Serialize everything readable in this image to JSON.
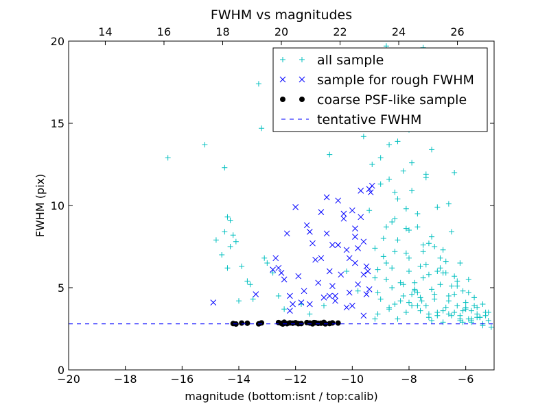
{
  "chart_data": {
    "type": "scatter",
    "title": "FWHM vs magnitudes",
    "xlabel": "magnitude (bottom:isnt / top:calib)",
    "ylabel": "FWHM (pix)",
    "xlim": [
      -20,
      -5
    ],
    "ylim": [
      0,
      20
    ],
    "x_ticks": [
      -20,
      -18,
      -16,
      -14,
      -12,
      -10,
      -8,
      -6
    ],
    "y_ticks": [
      0,
      5,
      10,
      15,
      20
    ],
    "top_axis": {
      "xlim": [
        12.75,
        27.25
      ],
      "ticks": [
        14,
        16,
        18,
        20,
        22,
        24,
        26
      ]
    },
    "legend_position": "top-right",
    "grid": false,
    "series": [
      {
        "name": "all sample",
        "marker": "+",
        "color": "#00bfbf",
        "x": [
          -16.5,
          -15.2,
          -14.5,
          -14.4,
          -14.3,
          -14.2,
          -14.1,
          -14.5,
          -14.3,
          -14.6,
          -14.8,
          -14.0,
          -13.9,
          -13.7,
          -13.6,
          -13.5,
          -13.3,
          -13.1,
          -13.0,
          -12.8,
          -14.4,
          -13.2,
          -12.6,
          -12.4,
          -11.8,
          -11.5,
          -11.0,
          -10.8,
          -10.5,
          -10.2,
          -9.8,
          -9.6,
          -9.4,
          -9.3,
          -9.2,
          -9.1,
          -9.0,
          -8.9,
          -8.8,
          -8.7,
          -8.6,
          -8.5,
          -8.4,
          -8.3,
          -8.2,
          -8.1,
          -8.0,
          -7.9,
          -7.8,
          -7.7,
          -7.6,
          -7.5,
          -7.4,
          -7.3,
          -7.2,
          -7.1,
          -7.0,
          -6.9,
          -6.8,
          -6.7,
          -6.6,
          -6.5,
          -6.4,
          -6.3,
          -6.2,
          -6.1,
          -6.0,
          -5.9,
          -5.8,
          -5.7,
          -5.6,
          -5.5,
          -5.4,
          -5.3,
          -5.2,
          -5.1,
          -9.2,
          -9.0,
          -8.8,
          -8.6,
          -8.4,
          -8.2,
          -8.0,
          -7.8,
          -7.6,
          -7.4,
          -7.2,
          -7.0,
          -6.8,
          -6.6,
          -6.4,
          -6.2,
          -6.0,
          -5.8,
          -5.6,
          -5.4,
          -5.2,
          -9.1,
          -8.9,
          -8.7,
          -8.5,
          -8.3,
          -8.1,
          -7.9,
          -7.7,
          -7.5,
          -7.3,
          -7.1,
          -6.9,
          -6.7,
          -6.5,
          -6.3,
          -6.1,
          -5.9,
          -5.7,
          -5.5,
          -5.3,
          -8.8,
          -8.4,
          -8.0,
          -7.6,
          -7.2,
          -6.8,
          -6.4,
          -6.0,
          -5.6,
          -8.6,
          -8.2,
          -7.8,
          -7.4,
          -7.0,
          -6.6,
          -6.2,
          -5.8,
          -9.0,
          -8.5,
          -8.0,
          -7.5,
          -7.0,
          -6.5,
          -8.7,
          -8.1,
          -7.7,
          -7.3,
          -6.9,
          -6.3,
          -5.9,
          -8.3,
          -7.9,
          -7.1,
          -6.7,
          -8.9,
          -8.0,
          -7.4,
          -6.6,
          -9.3,
          -8.6,
          -7.8,
          -7.2,
          -8.2,
          -7.6,
          -8.8,
          -8.4,
          -7.5,
          -7.0,
          -6.4,
          -9.1,
          -8.5,
          -7.9,
          -7.3,
          -6.8,
          -6.2,
          -5.8,
          -5.4,
          -7.55,
          -9.2,
          -8.7,
          -8.1,
          -7.7,
          -6.1
        ],
        "y": [
          12.9,
          13.7,
          12.3,
          9.3,
          9.1,
          8.2,
          7.8,
          8.4,
          7.5,
          7.0,
          7.9,
          4.2,
          6.3,
          5.4,
          5.2,
          4.3,
          17.4,
          6.8,
          6.5,
          5.9,
          6.2,
          14.7,
          4.5,
          3.7,
          4.0,
          3.4,
          3.9,
          13.1,
          15.8,
          6.0,
          4.8,
          14.2,
          9.7,
          12.5,
          7.4,
          6.1,
          11.3,
          8.0,
          6.5,
          13.7,
          9.0,
          7.2,
          10.4,
          5.3,
          12.1,
          8.6,
          6.8,
          10.9,
          4.9,
          9.5,
          6.3,
          7.6,
          11.7,
          5.8,
          8.1,
          4.6,
          9.9,
          5.2,
          7.3,
          6.6,
          4.5,
          8.4,
          5.7,
          3.9,
          6.5,
          4.8,
          4.1,
          5.5,
          3.6,
          4.4,
          3.8,
          3.2,
          4.0,
          3.3,
          3.0,
          2.6,
          5.6,
          4.3,
          8.7,
          5.0,
          7.9,
          4.5,
          6.0,
          5.3,
          3.6,
          6.4,
          4.9,
          3.5,
          5.9,
          3.4,
          4.6,
          3.1,
          3.7,
          2.9,
          3.4,
          2.8,
          3.5,
          4.7,
          6.9,
          3.8,
          9.2,
          4.2,
          7.1,
          3.9,
          4.7,
          5.6,
          3.4,
          4.3,
          6.2,
          3.8,
          3.3,
          5.1,
          3.6,
          3.1,
          3.9,
          3.2,
          3.5,
          5.5,
          3.1,
          4.1,
          4.4,
          3.0,
          2.9,
          3.5,
          3.8,
          3.2,
          6.2,
          5.2,
          4.8,
          3.9,
          3.3,
          4.2,
          3.0,
          3.1,
          12.9,
          10.8,
          8.5,
          7.2,
          6.0,
          5.1,
          11.6,
          9.8,
          8.7,
          7.7,
          6.8,
          5.4,
          4.7,
          15.2,
          12.6,
          7.5,
          5.9,
          16.9,
          14.6,
          11.9,
          10.1,
          18.1,
          15.7,
          14.9,
          13.4,
          16.4,
          15.5,
          19.7,
          13.9,
          19.6,
          17.7,
          12.0,
          3.4,
          4.0,
          4.6,
          3.2,
          3.6,
          3.3,
          3.0,
          2.7,
          4.2,
          3.1,
          3.7,
          3.5,
          3.9,
          2.9
        ]
      },
      {
        "name": "sample for rough FWHM",
        "marker": "x",
        "color": "#0000ff",
        "x": [
          -14.9,
          -13.4,
          -12.7,
          -12.6,
          -12.5,
          -12.4,
          -12.3,
          -12.2,
          -12.0,
          -11.8,
          -11.6,
          -11.5,
          -11.3,
          -11.2,
          -11.1,
          -11.0,
          -10.9,
          -10.8,
          -10.7,
          -10.6,
          -10.5,
          -10.4,
          -10.3,
          -10.2,
          -10.1,
          -10.0,
          -9.9,
          -9.8,
          -9.7,
          -9.6,
          -9.5,
          -9.4,
          -9.3,
          -11.7,
          -11.4,
          -10.9,
          -10.5,
          -10.1,
          -9.9,
          -9.6,
          -9.4,
          -12.1,
          -10.7,
          -10.3,
          -9.8,
          -9.5,
          -9.35,
          -10.0,
          -9.7,
          -11.9,
          -11.1,
          -10.6,
          -9.9,
          -9.45,
          -12.8,
          -12.2,
          -11.5,
          -10.8,
          -10.2,
          -9.6
        ],
        "y": [
          4.1,
          4.6,
          6.8,
          6.2,
          5.9,
          5.5,
          8.3,
          4.5,
          9.9,
          4.1,
          8.8,
          8.4,
          6.7,
          5.3,
          9.6,
          4.4,
          8.3,
          6.0,
          7.6,
          4.5,
          10.3,
          5.8,
          9.2,
          7.3,
          4.7,
          9.7,
          6.5,
          5.2,
          10.9,
          7.8,
          6.3,
          4.9,
          11.2,
          4.8,
          7.7,
          10.5,
          7.6,
          6.8,
          8.1,
          5.8,
          11.0,
          4.0,
          5.1,
          9.5,
          7.4,
          4.6,
          10.8,
          3.9,
          9.3,
          5.7,
          6.8,
          4.2,
          8.6,
          6.0,
          6.1,
          3.6,
          4.0,
          4.5,
          3.8,
          3.3
        ]
      },
      {
        "name": "coarse PSF-like sample",
        "marker": "o",
        "color": "#000000",
        "x": [
          -14.2,
          -14.1,
          -13.9,
          -13.7,
          -13.3,
          -13.2,
          -12.6,
          -12.5,
          -12.4,
          -12.3,
          -12.2,
          -12.1,
          -12.0,
          -11.8,
          -11.6,
          -11.5,
          -11.4,
          -11.3,
          -11.2,
          -11.1,
          -11.0,
          -10.8,
          -10.7,
          -10.5,
          -12.45,
          -11.9,
          -11.35,
          -10.95
        ],
        "y": [
          2.82,
          2.79,
          2.85,
          2.84,
          2.8,
          2.86,
          2.88,
          2.83,
          2.9,
          2.81,
          2.86,
          2.84,
          2.87,
          2.82,
          2.88,
          2.85,
          2.8,
          2.87,
          2.83,
          2.84,
          2.89,
          2.82,
          2.86,
          2.85,
          2.79,
          2.81,
          2.88,
          2.8
        ]
      },
      {
        "name": "tentative FWHM",
        "type": "hline",
        "style": "dashed",
        "color": "#0000ff",
        "y": 2.8
      }
    ]
  }
}
